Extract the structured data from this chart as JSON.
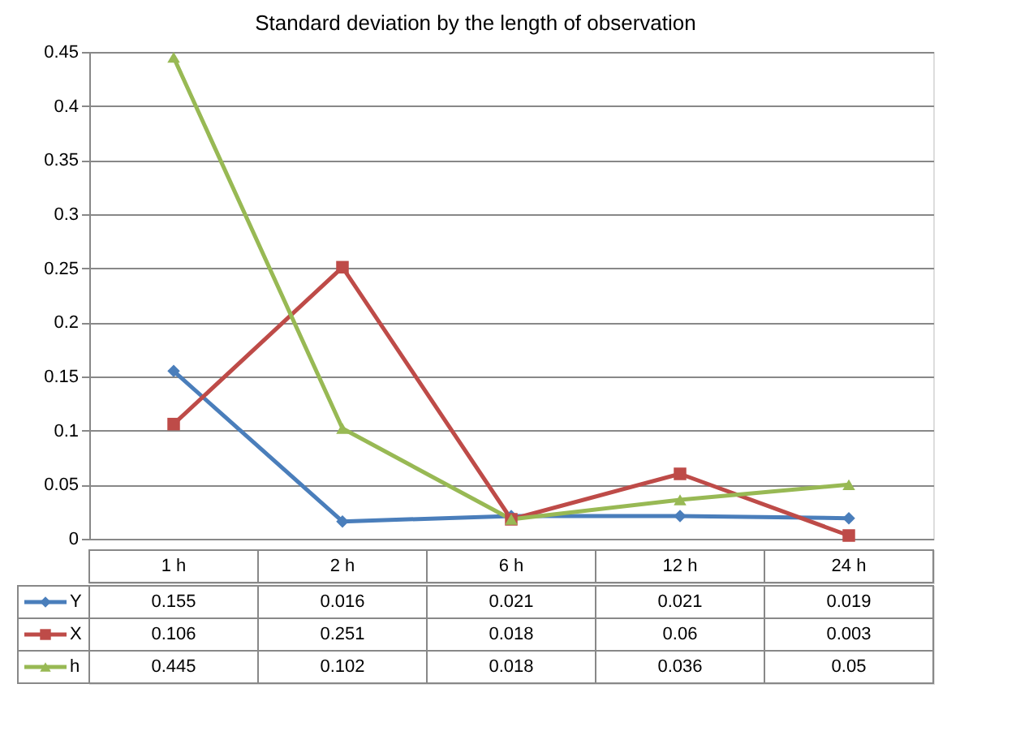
{
  "chart_data": {
    "type": "line",
    "title": "Standard deviation by the  length of observation",
    "categories": [
      "1 h",
      "2 h",
      "6 h",
      "12 h",
      "24 h"
    ],
    "series": [
      {
        "name": "Y",
        "color": "#4a7ebb",
        "marker": "diamond",
        "values": [
          0.155,
          0.016,
          0.021,
          0.021,
          0.019
        ]
      },
      {
        "name": "X",
        "color": "#be4b48",
        "marker": "square",
        "values": [
          0.106,
          0.251,
          0.018,
          0.06,
          0.003
        ]
      },
      {
        "name": "h",
        "color": "#98b954",
        "marker": "triangle",
        "values": [
          0.445,
          0.102,
          0.018,
          0.036,
          0.05
        ]
      }
    ],
    "ylim": [
      0,
      0.45
    ],
    "yticks": [
      0,
      0.05,
      0.1,
      0.15,
      0.2,
      0.25,
      0.3,
      0.35,
      0.4,
      0.45
    ],
    "grid": "y",
    "data_labels": true,
    "legend": "bottom left",
    "line_style": "solid"
  }
}
